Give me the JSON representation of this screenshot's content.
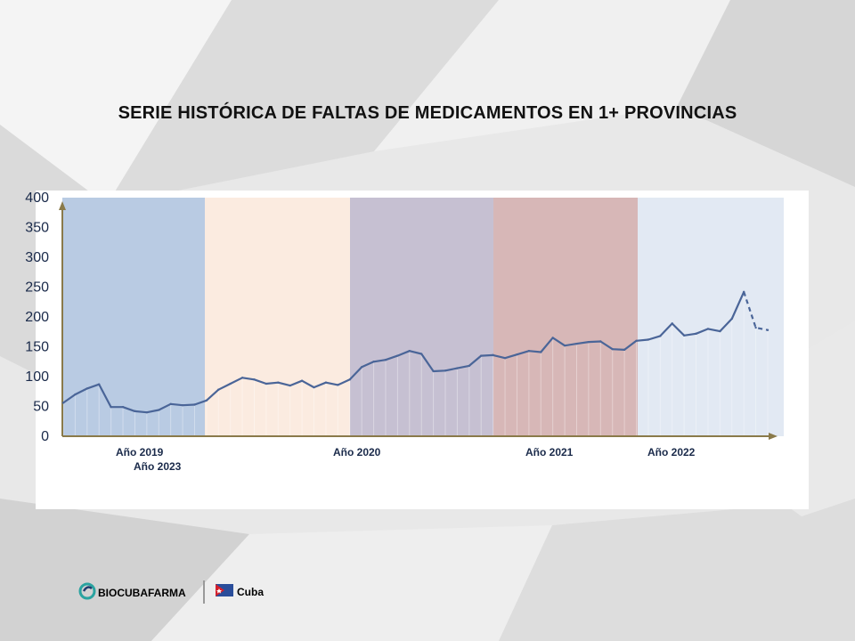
{
  "slide": {
    "title": "SERIE HISTÓRICA DE FALTAS DE MEDICAMENTOS EN 1+ PROVINCIAS"
  },
  "brand": {
    "name": "BIOCUBAFARMA",
    "country": "Cuba"
  },
  "chart_data": {
    "type": "line",
    "title": "",
    "xlabel": "",
    "ylabel": "",
    "ylim": [
      0,
      400
    ],
    "yticks": [
      "400",
      "350",
      "300",
      "250",
      "200",
      "150",
      "100",
      "50",
      "0"
    ],
    "year_labels": [
      {
        "label": "Año 2019",
        "period": 1
      },
      {
        "label": "Año 2023",
        "period": 1
      },
      {
        "label": "Año 2020",
        "period": 3
      },
      {
        "label": "Año 2021",
        "period": 4
      },
      {
        "label": "Año 2022",
        "period": 5
      }
    ],
    "periods": [
      {
        "color": "#b9cbe3"
      },
      {
        "color": "#fbebe0"
      },
      {
        "color": "#c6c0d2"
      },
      {
        "color": "#d7b7b7"
      },
      {
        "color": "#e2e9f3"
      }
    ],
    "series": [
      {
        "line_color": "#4a6598",
        "values": [
          56,
          70,
          80,
          87,
          49,
          49,
          42,
          40,
          44,
          54,
          52,
          53,
          60,
          78,
          88,
          98,
          95,
          88,
          90,
          85,
          93,
          82,
          90,
          86,
          95,
          116,
          125,
          128,
          135,
          143,
          138,
          109,
          110,
          114,
          118,
          135,
          136,
          131,
          137,
          143,
          141,
          165,
          152,
          155,
          158,
          159,
          146,
          145,
          160,
          162,
          168,
          189,
          169,
          172,
          180,
          176,
          197,
          242,
          182,
          178
        ],
        "projected_from_index": 57
      }
    ]
  }
}
